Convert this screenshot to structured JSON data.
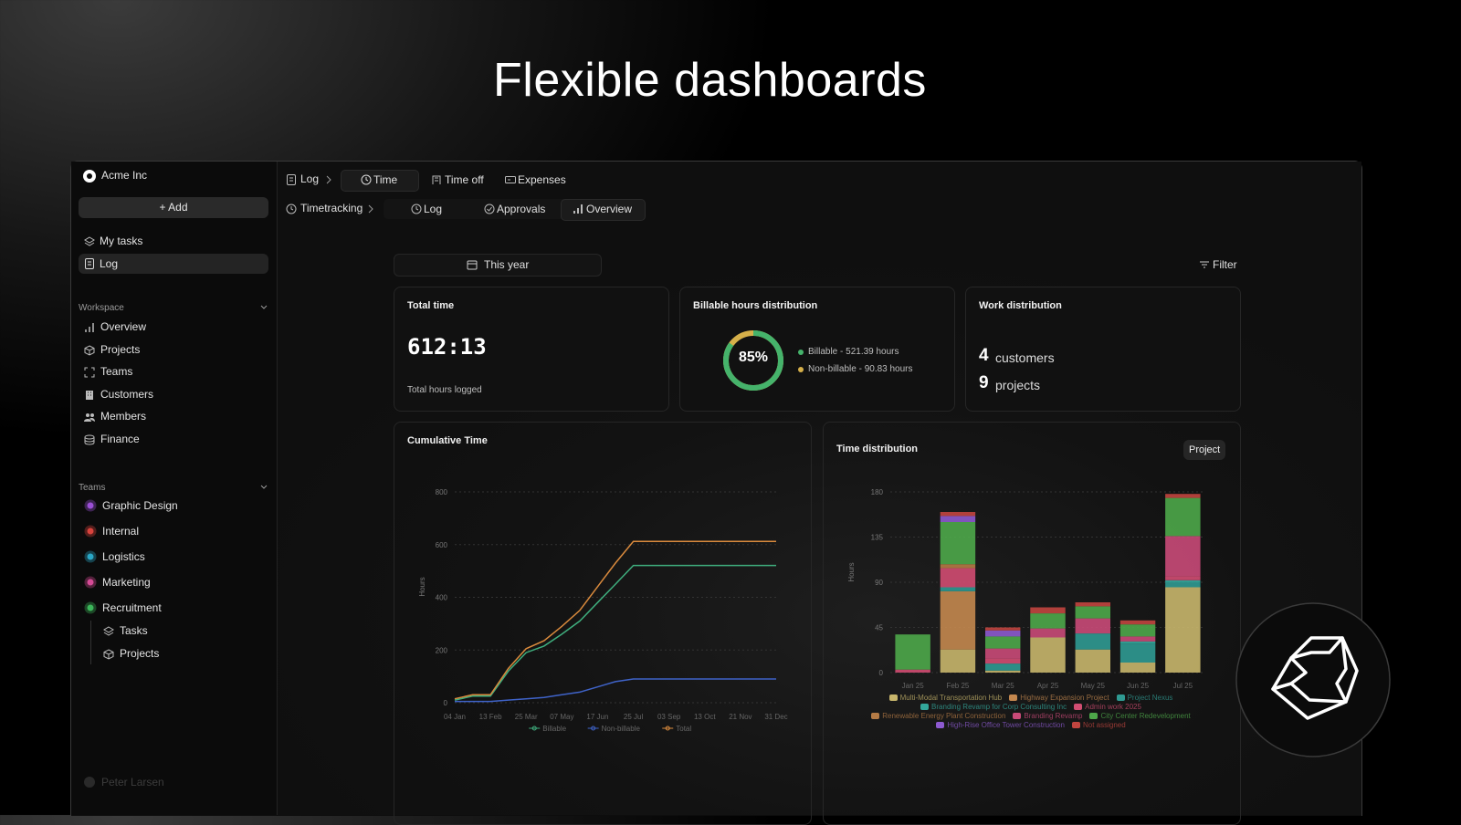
{
  "headline": "Flexible dashboards",
  "sidebar": {
    "org": "Acme Inc",
    "add": "+ Add",
    "nav": [
      "My tasks",
      "Log"
    ],
    "workspace": {
      "title": "Workspace",
      "items": [
        "Overview",
        "Projects",
        "Teams",
        "Customers",
        "Members",
        "Finance"
      ]
    },
    "teams": {
      "title": "Teams",
      "items": [
        "Graphic Design",
        "Internal",
        "Logistics",
        "Marketing",
        "Recruitment"
      ],
      "subitems": [
        "Tasks",
        "Projects"
      ]
    },
    "user": "Peter Larsen"
  },
  "topbar": {
    "crumb": "Log",
    "tabs": [
      "Time",
      "Time off",
      "Expenses"
    ]
  },
  "subbar": {
    "crumb": "Timetracking",
    "tabs": [
      "Log",
      "Approvals",
      "Overview"
    ]
  },
  "toolbar": {
    "period": "This year",
    "filter": "Filter"
  },
  "cards": {
    "total": {
      "title": "Total time",
      "value": "612:13",
      "caption": "Total hours logged"
    },
    "billable": {
      "title": "Billable hours distribution",
      "percent": {
        "value": 85,
        "label": "85%"
      },
      "colors": [
        "#45b36b",
        "#d6b04a"
      ],
      "legend": [
        "Billable - 521.39 hours",
        "Non-billable - 90.83 hours"
      ]
    },
    "work": {
      "title": "Work distribution",
      "customers": 4,
      "customers_label": "customers",
      "projects": 9,
      "projects_label": "projects"
    }
  },
  "cumulative": {
    "type": "line",
    "title": "Cumulative Time",
    "ylabel": "Hours",
    "grid": true,
    "categories": [
      "04 Jan",
      null,
      "13 Feb",
      null,
      "25 Mar",
      null,
      "07 May",
      null,
      "17 Jun",
      null,
      "25 Jul",
      null,
      "03 Sep",
      null,
      "13 Oct",
      null,
      "21 Nov",
      null,
      "31 Dec"
    ],
    "ylim": [
      0,
      800
    ],
    "yticks": [
      0,
      200,
      400,
      600,
      800
    ],
    "series": [
      {
        "name": "Billable",
        "color": "#3fae7e",
        "values": [
          10,
          25,
          25,
          120,
          190,
          215,
          260,
          310,
          380,
          450,
          521,
          521,
          521,
          521,
          521,
          521,
          521,
          521,
          521
        ]
      },
      {
        "name": "Non-billable",
        "color": "#3f63c9",
        "values": [
          5,
          5,
          5,
          10,
          15,
          20,
          30,
          40,
          60,
          80,
          90,
          90,
          90,
          90,
          90,
          90,
          90,
          90,
          90
        ]
      },
      {
        "name": "Total",
        "color": "#d98a3d",
        "values": [
          15,
          30,
          30,
          130,
          205,
          235,
          290,
          350,
          440,
          530,
          612,
          612,
          612,
          612,
          612,
          612,
          612,
          612,
          612
        ]
      }
    ]
  },
  "distribution": {
    "type": "bar",
    "stacked": true,
    "title": "Time distribution",
    "control": "Project",
    "ylabel": "Hours",
    "categories": [
      "Jan 25",
      "Feb 25",
      "Mar 25",
      "Apr 25",
      "May 25",
      "Jun 25",
      "Jul 25"
    ],
    "ylim": [
      0,
      180
    ],
    "yticks": [
      0,
      45,
      90,
      135,
      180
    ],
    "grid": true,
    "series": [
      {
        "name": "Multi-Modal Transportation Hub",
        "color": "#c8b66c",
        "values": [
          0,
          23,
          2,
          35,
          23,
          10,
          85
        ]
      },
      {
        "name": "Highway Expansion Project",
        "color": "#c4884f",
        "values": [
          0,
          58,
          0,
          0,
          0,
          0,
          0
        ]
      },
      {
        "name": "Project Nexus",
        "color": "#2f9a92",
        "values": [
          0,
          4,
          7,
          0,
          16,
          19,
          5
        ]
      },
      {
        "name": "Branding Revamp for Corp Consulting Inc",
        "color": "#33a89c",
        "values": [
          0,
          0,
          0,
          0,
          0,
          2,
          2
        ]
      },
      {
        "name": "Admin work 2025",
        "color": "#d24d72",
        "values": [
          3,
          19,
          5,
          0,
          0,
          0,
          4
        ]
      },
      {
        "name": "Renewable Energy Plant Construction",
        "color": "#b57b45",
        "values": [
          0,
          4,
          0,
          0,
          0,
          0,
          0
        ]
      },
      {
        "name": "Branding Revamp",
        "color": "#c94a78",
        "values": [
          0,
          0,
          10,
          9,
          15,
          5,
          40
        ]
      },
      {
        "name": "City Center Redevelopment",
        "color": "#4ea84a",
        "values": [
          35,
          42,
          12,
          15,
          12,
          12,
          38
        ]
      },
      {
        "name": "High-Rise Office Tower Construction",
        "color": "#8d5ad0",
        "values": [
          0,
          6,
          6,
          0,
          0,
          0,
          0
        ]
      },
      {
        "name": "Not assigned",
        "color": "#c2453f",
        "values": [
          0,
          4,
          3,
          6,
          4,
          4,
          4
        ]
      }
    ]
  }
}
